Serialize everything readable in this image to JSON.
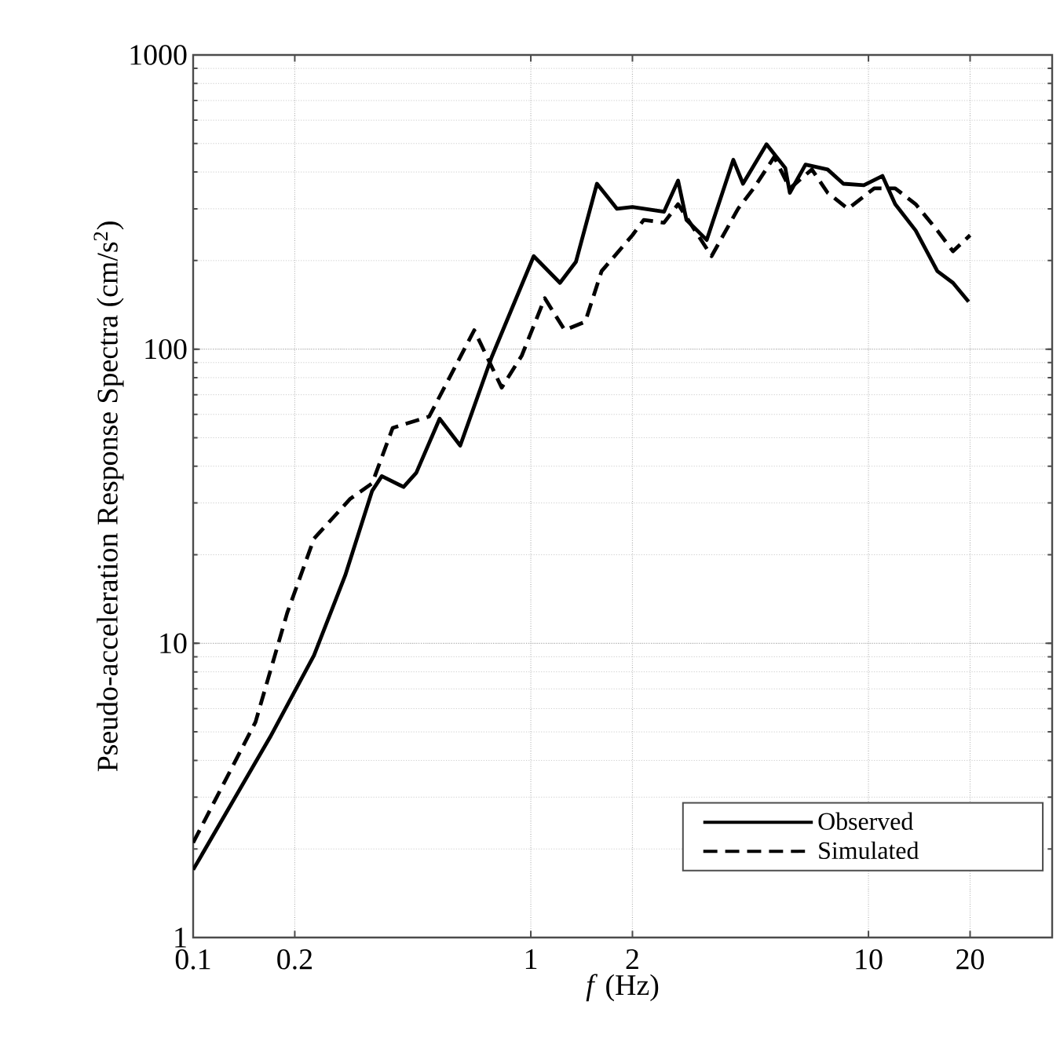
{
  "chart_data": {
    "type": "line",
    "xlabel": "*f* (Hz)",
    "ylabel": "Pseudo-acceleration Response Spectra (cm/s$^{2}$)",
    "log": "xy",
    "xlim": [
      0.1,
      35
    ],
    "ylim": [
      1,
      1000
    ],
    "xticks": [
      0.1,
      0.2,
      1,
      2,
      10,
      20
    ],
    "yticks": [
      1,
      10,
      100,
      1000
    ],
    "grid": true,
    "legend": "bottom right",
    "marker": "none",
    "series": [
      {
        "name": "Observed",
        "color": "#000000",
        "line_style": "solid",
        "x": [
          0.1,
          0.169,
          0.228,
          0.282,
          0.339,
          0.362,
          0.42,
          0.458,
          0.537,
          0.618,
          0.766,
          1.02,
          1.22,
          1.36,
          1.57,
          1.8,
          2.0,
          2.48,
          2.73,
          2.89,
          3.32,
          3.98,
          4.25,
          4.99,
          5.67,
          5.85,
          6.51,
          7.57,
          8.43,
          9.69,
          11.0,
          12.0,
          13.8,
          16.0,
          17.8,
          19.8
        ],
        "values": [
          1.7,
          4.8,
          9.1,
          17,
          33,
          37,
          34,
          38,
          58,
          47,
          94,
          207,
          168,
          198,
          365,
          300,
          304,
          293,
          374,
          275,
          235,
          440,
          365,
          497,
          413,
          340,
          424,
          408,
          365,
          361,
          388,
          311,
          253,
          184,
          168,
          145
        ]
      },
      {
        "name": "Simulated",
        "color": "#000000",
        "line_style": "dashed",
        "x": [
          0.1,
          0.153,
          0.19,
          0.228,
          0.292,
          0.339,
          0.39,
          0.5,
          0.68,
          0.82,
          0.94,
          1.1,
          1.26,
          1.45,
          1.62,
          2.0,
          2.16,
          2.48,
          2.73,
          3.43,
          4.11,
          4.57,
          5.26,
          5.85,
          6.8,
          7.57,
          8.7,
          10.4,
          12.0,
          13.8,
          16.0,
          17.8,
          20.0
        ],
        "values": [
          2.1,
          5.4,
          12.7,
          22.7,
          31,
          35,
          54,
          59,
          116,
          74,
          95,
          149,
          116,
          124,
          184,
          244,
          275,
          269,
          311,
          207,
          300,
          352,
          450,
          352,
          408,
          340,
          300,
          352,
          352,
          311,
          253,
          215,
          244
        ]
      }
    ]
  }
}
